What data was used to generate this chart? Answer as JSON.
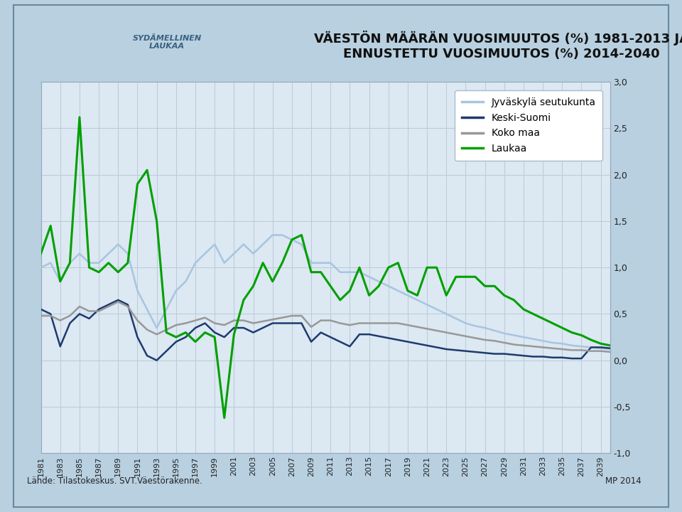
{
  "title_line1": "VÄESTÖN MÄÄRÄN VUOSIMUUTOS (%) 1981-2013 JA",
  "title_line2": "ENNUSTETTU VUOSIMUUTOS (%) 2014-2040",
  "footer_left": "Lähde: Tilastokeskus. SVT.Väestörakenne.",
  "footer_right": "MP 2014",
  "years": [
    1981,
    1982,
    1983,
    1984,
    1985,
    1986,
    1987,
    1988,
    1989,
    1990,
    1991,
    1992,
    1993,
    1994,
    1995,
    1996,
    1997,
    1998,
    1999,
    2000,
    2001,
    2002,
    2003,
    2004,
    2005,
    2006,
    2007,
    2008,
    2009,
    2010,
    2011,
    2012,
    2013,
    2014,
    2015,
    2016,
    2017,
    2018,
    2019,
    2020,
    2021,
    2022,
    2023,
    2024,
    2025,
    2026,
    2027,
    2028,
    2029,
    2030,
    2031,
    2032,
    2033,
    2034,
    2035,
    2036,
    2037,
    2038,
    2039,
    2040
  ],
  "jyvaskyla": [
    1.0,
    1.05,
    0.85,
    1.05,
    1.15,
    1.05,
    1.05,
    1.15,
    1.25,
    1.15,
    0.75,
    0.55,
    0.35,
    0.55,
    0.75,
    0.85,
    1.05,
    1.15,
    1.25,
    1.05,
    1.15,
    1.25,
    1.15,
    1.25,
    1.35,
    1.35,
    1.3,
    1.25,
    1.05,
    1.05,
    1.05,
    0.95,
    0.95,
    0.95,
    0.9,
    0.85,
    0.8,
    0.75,
    0.7,
    0.65,
    0.6,
    0.55,
    0.5,
    0.45,
    0.4,
    0.37,
    0.35,
    0.32,
    0.29,
    0.27,
    0.25,
    0.23,
    0.21,
    0.19,
    0.18,
    0.16,
    0.15,
    0.14,
    0.13,
    0.12
  ],
  "keski_suomi": [
    0.55,
    0.5,
    0.15,
    0.4,
    0.5,
    0.45,
    0.55,
    0.6,
    0.65,
    0.6,
    0.25,
    0.05,
    0.0,
    0.1,
    0.2,
    0.25,
    0.35,
    0.4,
    0.3,
    0.25,
    0.35,
    0.35,
    0.3,
    0.35,
    0.4,
    0.4,
    0.4,
    0.4,
    0.2,
    0.3,
    0.25,
    0.2,
    0.15,
    0.28,
    0.28,
    0.26,
    0.24,
    0.22,
    0.2,
    0.18,
    0.16,
    0.14,
    0.12,
    0.11,
    0.1,
    0.09,
    0.08,
    0.07,
    0.07,
    0.06,
    0.05,
    0.04,
    0.04,
    0.03,
    0.03,
    0.02,
    0.02,
    0.14,
    0.14,
    0.13
  ],
  "koko_maa": [
    0.48,
    0.48,
    0.43,
    0.48,
    0.58,
    0.53,
    0.53,
    0.58,
    0.63,
    0.58,
    0.43,
    0.33,
    0.28,
    0.33,
    0.38,
    0.4,
    0.43,
    0.46,
    0.4,
    0.38,
    0.43,
    0.43,
    0.4,
    0.42,
    0.44,
    0.46,
    0.48,
    0.48,
    0.36,
    0.43,
    0.43,
    0.4,
    0.38,
    0.4,
    0.4,
    0.4,
    0.4,
    0.4,
    0.38,
    0.36,
    0.34,
    0.32,
    0.3,
    0.28,
    0.26,
    0.24,
    0.22,
    0.21,
    0.19,
    0.17,
    0.16,
    0.15,
    0.14,
    0.13,
    0.12,
    0.11,
    0.11,
    0.1,
    0.1,
    0.09
  ],
  "laukaa": [
    1.15,
    1.45,
    0.85,
    1.05,
    2.62,
    1.0,
    0.95,
    1.05,
    0.95,
    1.05,
    1.9,
    2.05,
    1.5,
    0.3,
    0.25,
    0.3,
    0.2,
    0.3,
    0.25,
    -0.62,
    0.28,
    0.65,
    0.8,
    1.05,
    0.85,
    1.05,
    1.3,
    1.35,
    0.95,
    0.95,
    0.8,
    0.65,
    0.75,
    1.0,
    0.7,
    0.8,
    1.0,
    1.05,
    0.75,
    0.7,
    1.0,
    1.0,
    0.7,
    0.9,
    0.9,
    0.9,
    0.8,
    0.8,
    0.7,
    0.65,
    0.55,
    0.5,
    0.45,
    0.4,
    0.35,
    0.3,
    0.27,
    0.22,
    0.18,
    0.16
  ],
  "ylim": [
    -1.0,
    3.0
  ],
  "yticks": [
    -1.0,
    -0.5,
    0.0,
    0.5,
    1.0,
    1.5,
    2.0,
    2.5,
    3.0
  ],
  "bg_outer": "#b8d0e0",
  "bg_title_area": "#d0e4f0",
  "bg_chart": "#dce8f2",
  "color_jyvaskyla": "#a8c4e0",
  "color_keski_suomi": "#1e3a6e",
  "color_koko_maa": "#989898",
  "color_laukaa": "#00a000",
  "legend_labels": [
    "Jyväskylä seutukunta",
    "Keski-Suomi",
    "Koko maa",
    "Laukaa"
  ],
  "title_fontsize": 13,
  "tick_fontsize": 8,
  "legend_fontsize": 10,
  "grid_color": "#b8ccd8",
  "spine_color": "#90a8b8"
}
